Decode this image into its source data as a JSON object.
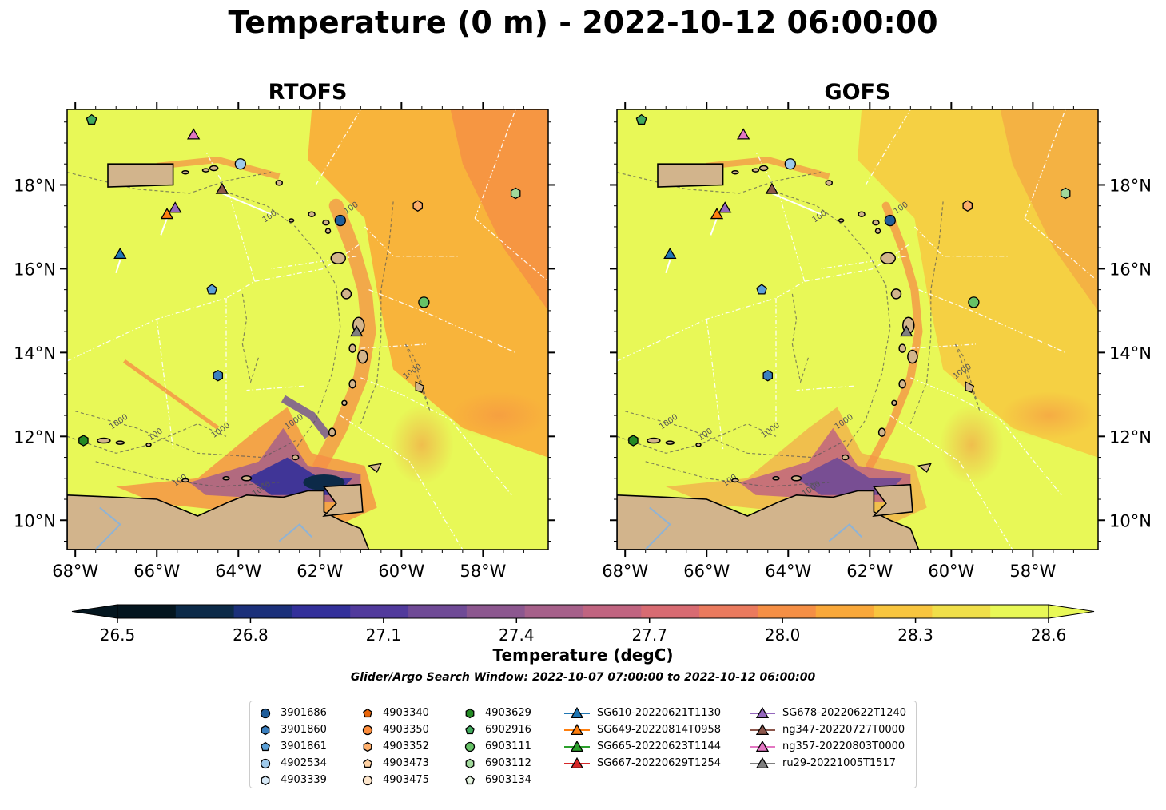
{
  "title": "Temperature (0 m) - 2022-10-12 06:00:00",
  "panels": [
    {
      "title": "RTOFS",
      "variant": "rtofs",
      "y_ticks_side": "left"
    },
    {
      "title": "GOFS",
      "variant": "gofs",
      "y_ticks_side": "right"
    }
  ],
  "map": {
    "lon_range": [
      -68.2,
      -56.4
    ],
    "lat_range": [
      9.3,
      19.8
    ],
    "lon_ticks": [
      -68,
      -66,
      -64,
      -62,
      -60,
      -58
    ],
    "lon_tick_labels": [
      "68°W",
      "66°W",
      "64°W",
      "62°W",
      "60°W",
      "58°W"
    ],
    "lat_ticks": [
      10,
      12,
      14,
      16,
      18
    ],
    "lat_tick_labels": [
      "10°N",
      "12°N",
      "14°N",
      "16°N",
      "18°N"
    ],
    "contour_labels": [
      "100",
      "1000",
      "100",
      "1000",
      "1000",
      "1000",
      "100",
      "1000",
      "100"
    ],
    "colors": {
      "land": "#d2b48c",
      "coast": "#000000",
      "ocean_warm": "#e8f857",
      "contour": "#555555"
    }
  },
  "colorbar": {
    "label": "Temperature (degC)",
    "min": 26.5,
    "max": 28.6,
    "ticks": [
      26.5,
      26.8,
      27.1,
      27.4,
      27.7,
      28.0,
      28.3,
      28.6
    ],
    "tick_labels": [
      "26.5",
      "26.8",
      "27.1",
      "27.4",
      "27.7",
      "28.0",
      "28.3",
      "28.6"
    ],
    "colormap": [
      "#04161f",
      "#0c2a48",
      "#1b307a",
      "#33309a",
      "#513a9c",
      "#6f4a96",
      "#8c578f",
      "#a6608a",
      "#c06480",
      "#d86b72",
      "#ea7a5e",
      "#f58f45",
      "#f9a83a",
      "#f8c53f",
      "#f0df4a",
      "#e8f857"
    ]
  },
  "subtitle": "Glider/Argo Search Window: 2022-10-07 07:00:00 to 2022-10-12 06:00:00",
  "legend": {
    "columns": [
      [
        {
          "label": "3901686",
          "marker": "circle",
          "color": "#1f5d9a"
        },
        {
          "label": "3901860",
          "marker": "hexagon",
          "color": "#3a7fbf"
        },
        {
          "label": "3901861",
          "marker": "pentagon",
          "color": "#5a9fd6"
        },
        {
          "label": "4902534",
          "marker": "circle",
          "color": "#9ec9ea"
        },
        {
          "label": "4903339",
          "marker": "hexagon",
          "color": "#d6e8f6"
        }
      ],
      [
        {
          "label": "4903340",
          "marker": "pentagon",
          "color": "#e8650a"
        },
        {
          "label": "4903350",
          "marker": "circle",
          "color": "#fd8d3c"
        },
        {
          "label": "4903352",
          "marker": "hexagon",
          "color": "#fdae6b"
        },
        {
          "label": "4903473",
          "marker": "pentagon",
          "color": "#fdd0a2"
        },
        {
          "label": "4903475",
          "marker": "circle",
          "color": "#fde6cc"
        }
      ],
      [
        {
          "label": "4903629",
          "marker": "hexagon",
          "color": "#238b23"
        },
        {
          "label": "6902916",
          "marker": "pentagon",
          "color": "#41ab5d"
        },
        {
          "label": "6903111",
          "marker": "circle",
          "color": "#66c266"
        },
        {
          "label": "6903112",
          "marker": "hexagon",
          "color": "#a1d99b"
        },
        {
          "label": "6903134",
          "marker": "pentagon",
          "color": "#e5f5e0"
        }
      ],
      [
        {
          "label": "SG610-20220621T1130",
          "marker": "triangle",
          "color": "#1f77b4",
          "line": true
        },
        {
          "label": "SG649-20220814T0958",
          "marker": "triangle",
          "color": "#ff7f0e",
          "line": true
        },
        {
          "label": "SG665-20220623T1144",
          "marker": "triangle",
          "color": "#2ca02c",
          "line": true
        },
        {
          "label": "SG667-20220629T1254",
          "marker": "triangle",
          "color": "#d62728",
          "line": true
        }
      ],
      [
        {
          "label": "SG678-20220622T1240",
          "marker": "triangle",
          "color": "#9467bd",
          "line": true
        },
        {
          "label": "ng347-20220727T0000",
          "marker": "triangle",
          "color": "#8c564b",
          "line": true
        },
        {
          "label": "ng357-20220803T0000",
          "marker": "triangle",
          "color": "#e377c2",
          "line": true
        },
        {
          "label": "ru29-20221005T1517",
          "marker": "triangle",
          "color": "#7f7f7f",
          "line": true
        }
      ]
    ]
  },
  "observations": [
    {
      "lon": -61.5,
      "lat": 17.15,
      "marker": "circle",
      "color": "#1f5d9a"
    },
    {
      "lon": -64.5,
      "lat": 13.45,
      "marker": "hexagon",
      "color": "#3a7fbf"
    },
    {
      "lon": -64.65,
      "lat": 15.5,
      "marker": "pentagon",
      "color": "#5a9fd6"
    },
    {
      "lon": -63.95,
      "lat": 18.5,
      "marker": "circle",
      "color": "#9ec9ea"
    },
    {
      "lon": -59.6,
      "lat": 17.5,
      "marker": "hexagon",
      "color": "#fdae6b"
    },
    {
      "lon": -67.8,
      "lat": 11.9,
      "marker": "hexagon",
      "color": "#238b23"
    },
    {
      "lon": -67.6,
      "lat": 19.55,
      "marker": "pentagon",
      "color": "#41ab5d"
    },
    {
      "lon": -59.45,
      "lat": 15.2,
      "marker": "circle",
      "color": "#66c266"
    },
    {
      "lon": -57.2,
      "lat": 17.8,
      "marker": "hexagon",
      "color": "#a1d99b"
    },
    {
      "lon": -66.9,
      "lat": 16.35,
      "marker": "triangle",
      "color": "#1f77b4"
    },
    {
      "lon": -65.75,
      "lat": 17.3,
      "marker": "triangle",
      "color": "#ff7f0e"
    },
    {
      "lon": -65.55,
      "lat": 17.45,
      "marker": "triangle",
      "color": "#9467bd"
    },
    {
      "lon": -64.4,
      "lat": 17.9,
      "marker": "triangle",
      "color": "#8c564b"
    },
    {
      "lon": -65.1,
      "lat": 19.2,
      "marker": "triangle",
      "color": "#e377c2"
    },
    {
      "lon": -61.1,
      "lat": 14.5,
      "marker": "triangle",
      "color": "#7f7f7f"
    }
  ]
}
